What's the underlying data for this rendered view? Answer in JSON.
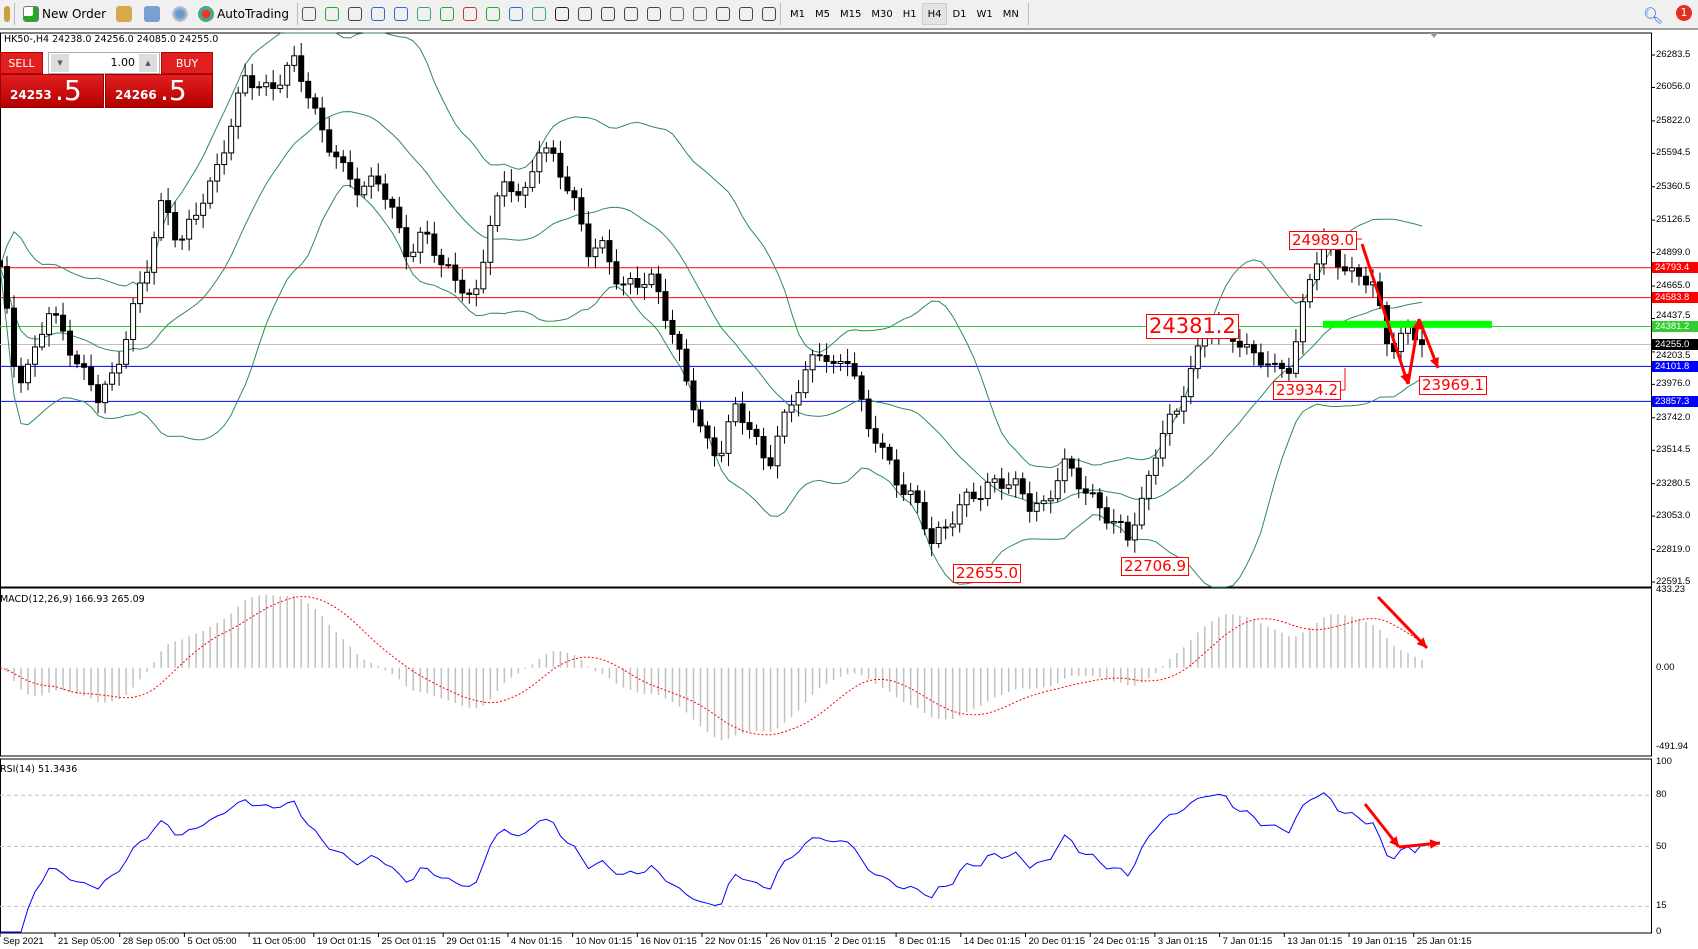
{
  "toolbar": {
    "new_order": "New Order",
    "autotrading": "AutoTrading",
    "icons": [
      "chart-bar-icon",
      "candlestick-icon",
      "line-chart-icon",
      "zoom-in-icon",
      "zoom-out-icon",
      "tile-windows-icon",
      "autoscroll-icon",
      "chart-shift-icon",
      "indicators-icon",
      "periods-icon",
      "templates-icon",
      "cursor-icon",
      "crosshair-icon",
      "vertical-line-icon",
      "horizontal-line-icon",
      "trendline-icon",
      "equidistant-channel-icon",
      "fibonacci-icon",
      "text-icon",
      "text-label-icon",
      "arrows-icon"
    ],
    "timeframes": [
      "M1",
      "M5",
      "M15",
      "M30",
      "H1",
      "H4",
      "D1",
      "W1",
      "MN"
    ],
    "active_timeframe": "H4",
    "notification_count": "1"
  },
  "chart": {
    "symbol_info": "HK50-,H4  24238.0 24256.0 24085.0 24255.0",
    "sell_label": "SELL",
    "buy_label": "BUY",
    "lot": "1.00",
    "sell_price_main": "24253",
    "sell_price_pips": ".5",
    "buy_price_main": "24266",
    "buy_price_pips": ".5"
  },
  "chart_data": {
    "type": "candlestick",
    "symbol": "HK50-",
    "timeframe": "H4",
    "price_axis_ticks": [
      "26283.5",
      "26056.0",
      "25822.0",
      "25594.5",
      "25360.5",
      "25126.5",
      "24899.0",
      "24665.0",
      "24437.5",
      "24203.5",
      "23976.0",
      "23742.0",
      "23514.5",
      "23280.5",
      "23053.0",
      "22819.0",
      "22591.5"
    ],
    "ylim": [
      22591.5,
      26283.5
    ],
    "time_axis_ticks": [
      "Sep 2021",
      "21 Sep 05:00",
      "28 Sep 05:00",
      "5 Oct 05:00",
      "11 Oct 05:00",
      "19 Oct 01:15",
      "25 Oct 01:15",
      "29 Oct 01:15",
      "4 Nov 01:15",
      "10 Nov 01:15",
      "16 Nov 01:15",
      "22 Nov 01:15",
      "26 Nov 01:15",
      "2 Dec 01:15",
      "8 Dec 01:15",
      "14 Dec 01:15",
      "20 Dec 01:15",
      "24 Dec 01:15",
      "3 Jan 01:15",
      "7 Jan 01:15",
      "13 Jan 01:15",
      "19 Jan 01:15",
      "25 Jan 01:15"
    ],
    "approx_closes": [
      24772,
      24013,
      24165,
      24469,
      24317,
      24089,
      23862,
      24051,
      24469,
      24772,
      25303,
      24962,
      25151,
      25417,
      25759,
      26100,
      26062,
      26100,
      26214,
      25986,
      25683,
      25455,
      25341,
      25455,
      25151,
      24886,
      25076,
      24772,
      24734,
      24544,
      25076,
      25455,
      25265,
      25607,
      25569,
      25303,
      24886,
      24962,
      24658,
      24658,
      24734,
      24393,
      23975,
      23634,
      23482,
      23786,
      23672,
      23406,
      23710,
      24013,
      24241,
      24051,
      24203,
      23710,
      23482,
      23293,
      23179,
      22837,
      23027,
      23179,
      23179,
      23330,
      23293,
      23103,
      23141,
      23444,
      23255,
      23179,
      23027,
      22875,
      23217,
      23634,
      23748,
      24165,
      24393,
      24317,
      24279,
      24165,
      24051,
      24127,
      24696,
      24924,
      24848,
      24734,
      24658,
      24241,
      24355,
      24255
    ],
    "horizontal_lines": [
      {
        "price": 24793.4,
        "label": "24793.4",
        "color": "#ff0000"
      },
      {
        "price": 24583.8,
        "label": "24583.8",
        "color": "#ff0000"
      },
      {
        "price": 24381.2,
        "label": "24381.2",
        "color": "#32cd32"
      },
      {
        "price": 24255.0,
        "label": "24255.0",
        "color": "#000000"
      },
      {
        "price": 24101.8,
        "label": "24101.8",
        "color": "#0000ff"
      },
      {
        "price": 23857.3,
        "label": "23857.3",
        "color": "#0000ff"
      }
    ],
    "annotations": [
      "24989.0",
      "24381.2",
      "23934.2",
      "23969.1",
      "22655.0",
      "22706.9"
    ],
    "bollinger_color": "#2e8b57",
    "macd": {
      "label": "MACD(12,26,9) 166.93 265.09",
      "ticks": [
        "433.23",
        "0.00",
        "-491.94"
      ],
      "ylim": [
        -491.94,
        433.23
      ],
      "hist_color": "#c0c0c0",
      "signal_color": "#ff0000"
    },
    "rsi": {
      "label": "RSI(14) 51.3436",
      "ticks": [
        "100",
        "80",
        "50",
        "15",
        "0"
      ],
      "levels": [
        80,
        50,
        15
      ],
      "color": "#0000ff"
    }
  }
}
